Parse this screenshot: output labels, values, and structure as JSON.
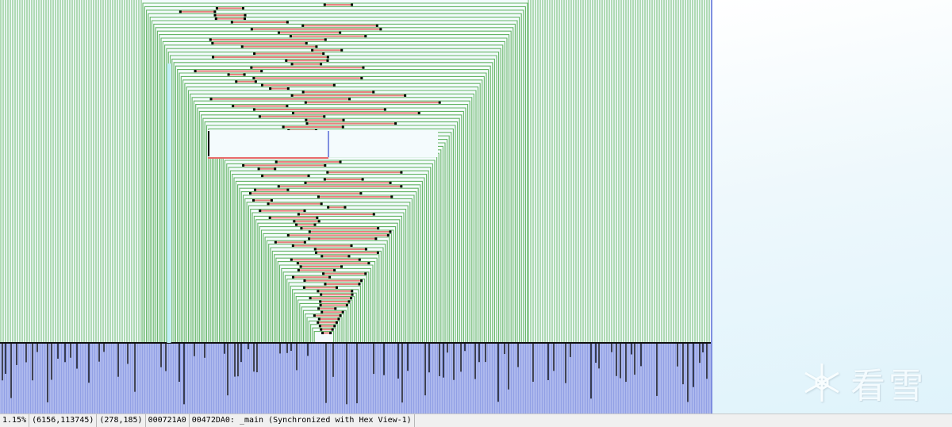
{
  "status_bar": {
    "zoom": "1.15%",
    "graph_coords": "(6156,113745)",
    "mouse_coords": "(278,185)",
    "file_offset": "000721A0",
    "location": "00472DA0: _main (Synchronized with Hex View-1)"
  },
  "watermark": {
    "text": "看雪",
    "icon": "snowflake-icon"
  },
  "colors": {
    "edge_green": "#4aa84a",
    "edge_red": "#e86a6a",
    "node_blue": "#7f8fe0",
    "background": "#f4fbfd"
  }
}
